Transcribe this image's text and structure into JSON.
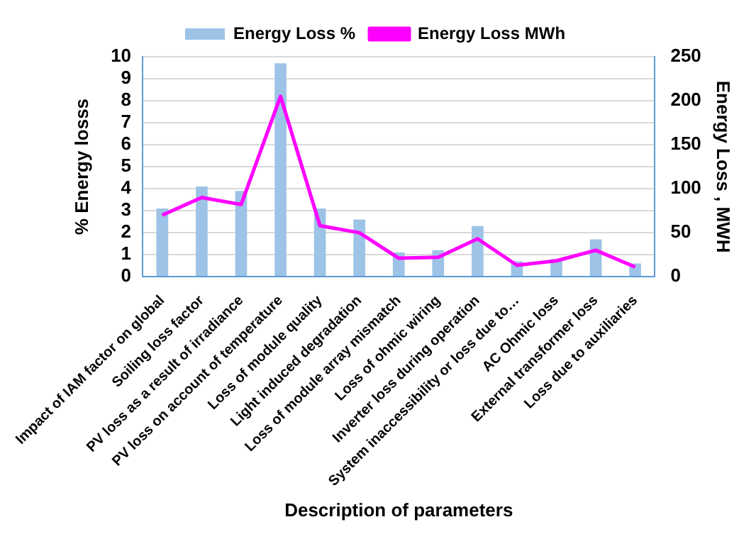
{
  "chart_data": {
    "type": "bar",
    "xlabel": "Description of parameters",
    "ylabel": "% Energy losss",
    "y2label": "Energy Loss , MWH",
    "categories": [
      "Impact of IAM factor on global",
      "Soiling loss factor",
      "PV loss as a result of irradiance",
      "PV loss on account of temperature",
      "Loss of module quality",
      "Light induced degradation",
      "Loss of module array mismatch",
      "Loss of ohmic wiring",
      "Inverter loss during operation",
      "System inaccessibility or loss due to…",
      "AC Ohmic loss",
      "External transformer loss",
      "Loss due to auxiliaries"
    ],
    "series": [
      {
        "name": "Energy Loss %",
        "color": "#9dc3e6",
        "values": [
          3.1,
          4.1,
          3.9,
          9.7,
          3.1,
          2.6,
          1.1,
          1.2,
          2.3,
          0.7,
          0.8,
          1.7,
          0.6
        ]
      },
      {
        "name": "Energy Loss MWh",
        "type": "line",
        "axis": "y2",
        "color": "#ff00ff",
        "values": [
          70,
          90,
          82,
          205,
          58,
          50,
          21,
          22,
          43,
          13,
          18,
          30,
          11
        ]
      }
    ],
    "ylim": [
      0,
      10
    ],
    "yticks": [
      0,
      1,
      2,
      3,
      4,
      5,
      6,
      7,
      8,
      9,
      10
    ],
    "y2lim": [
      0,
      250
    ],
    "y2ticks": [
      0,
      50,
      100,
      150,
      200,
      250
    ],
    "grid": "y",
    "legend": "top",
    "marker": "none"
  }
}
